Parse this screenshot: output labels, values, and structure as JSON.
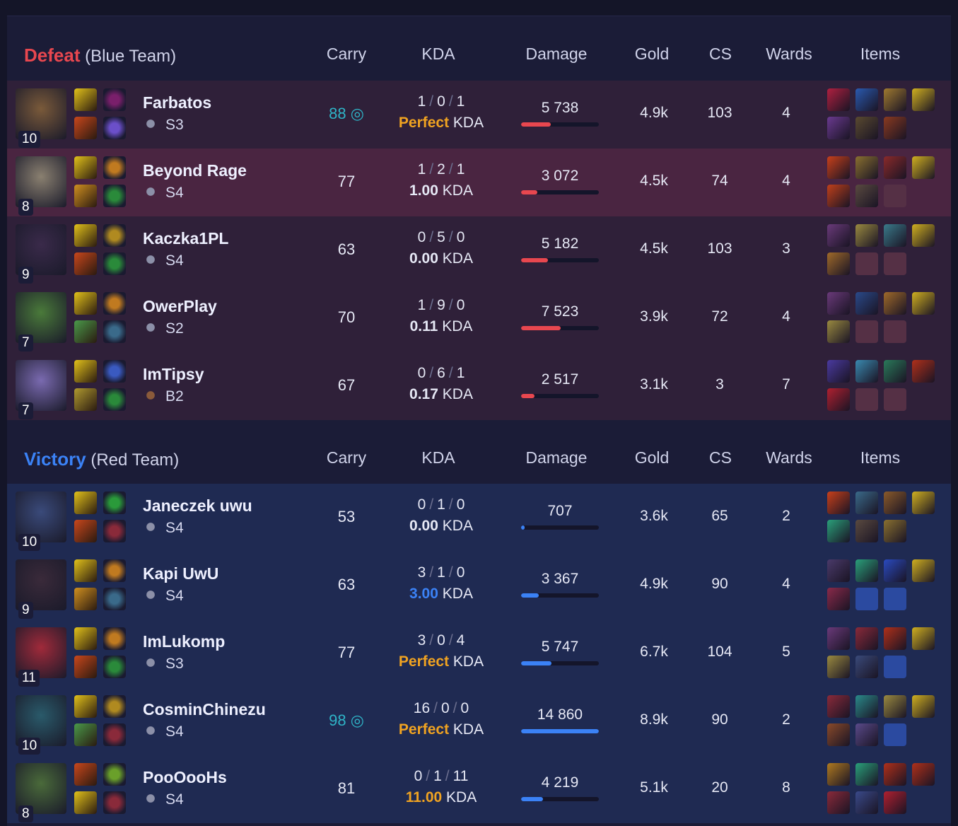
{
  "columns": {
    "carry": "Carry",
    "kda": "KDA",
    "damage": "Damage",
    "gold": "Gold",
    "cs": "CS",
    "wards": "Wards",
    "items": "Items"
  },
  "kda_suffix": "KDA",
  "max_damage": 14860,
  "colors": {
    "defeat": "#e8474f",
    "victory": "#3b82f6",
    "perfect": "#f0a321",
    "mvp": "#2fb5c8",
    "red_bar": "#e8474f",
    "blue_bar": "#3b82f6"
  },
  "teams": [
    {
      "result": "Defeat",
      "team": "(Blue Team)",
      "side": "red",
      "players": [
        {
          "name": "Farbatos",
          "level": "10",
          "rank": "S3",
          "tier_color": "#8c90a8",
          "carry": "88",
          "mvp": true,
          "k": "1",
          "d": "0",
          "a": "1",
          "ratio": "Perfect",
          "ratio_color": "#f0a321",
          "damage": 5738,
          "damage_text": "5 738",
          "gold": "4.9k",
          "cs": "103",
          "wards": "4",
          "portrait": "#7a5a3a",
          "spells": [
            "#e2c21a",
            "#c9471c"
          ],
          "runes": [
            "#7a1f6b",
            "#6b4fc9"
          ],
          "items": [
            "#b02040",
            "#2a5ab0",
            "#a07a30",
            "#d0b020",
            "#6a3a90",
            "#5a4a30",
            "#8a3a20"
          ],
          "empty": 0
        },
        {
          "name": "Beyond Rage",
          "level": "8",
          "rank": "S4",
          "tier_color": "#8c90a8",
          "carry": "77",
          "mvp": false,
          "k": "1",
          "d": "2",
          "a": "1",
          "ratio": "1.00",
          "ratio_color": "#e6e8f5",
          "damage": 3072,
          "damage_text": "3 072",
          "gold": "4.5k",
          "cs": "74",
          "wards": "4",
          "portrait": "#8a8070",
          "spells": [
            "#e2c21a",
            "#d09020"
          ],
          "runes": [
            "#c07a20",
            "#2a8a3a"
          ],
          "items": [
            "#c8401a",
            "#8a7030",
            "#8a2a2a",
            "#d0b020",
            "#c0401a",
            "#5a4a40"
          ],
          "empty": 1,
          "highlight": true
        },
        {
          "name": "Kaczka1PL",
          "level": "9",
          "rank": "S4",
          "tier_color": "#8c90a8",
          "carry": "63",
          "mvp": false,
          "k": "0",
          "d": "5",
          "a": "0",
          "ratio": "0.00",
          "ratio_color": "#e6e8f5",
          "damage": 5182,
          "damage_text": "5 182",
          "gold": "4.5k",
          "cs": "103",
          "wards": "3",
          "portrait": "#3a2a4a",
          "spells": [
            "#e2c21a",
            "#c9471c"
          ],
          "runes": [
            "#b08a20",
            "#2a8a3a"
          ],
          "items": [
            "#6a3a7a",
            "#9a8a40",
            "#3a7a8a",
            "#d0b020",
            "#a06a2a"
          ],
          "empty": 2
        },
        {
          "name": "OwerPlay",
          "level": "7",
          "rank": "S2",
          "tier_color": "#8c90a8",
          "carry": "70",
          "mvp": false,
          "k": "1",
          "d": "9",
          "a": "0",
          "ratio": "0.11",
          "ratio_color": "#e6e8f5",
          "damage": 7523,
          "damage_text": "7 523",
          "gold": "3.9k",
          "cs": "72",
          "wards": "4",
          "portrait": "#4a7a3a",
          "spells": [
            "#e2c21a",
            "#4a9a4a"
          ],
          "runes": [
            "#c07a20",
            "#3a6a8a"
          ],
          "items": [
            "#6a3a7a",
            "#2a4a8a",
            "#a06a2a",
            "#d0b020",
            "#9a8a40"
          ],
          "empty": 2
        },
        {
          "name": "ImTipsy",
          "level": "7",
          "rank": "B2",
          "tier_color": "#8a5a3a",
          "carry": "67",
          "mvp": false,
          "k": "0",
          "d": "6",
          "a": "1",
          "ratio": "0.17",
          "ratio_color": "#e6e8f5",
          "damage": 2517,
          "damage_text": "2 517",
          "gold": "3.1k",
          "cs": "3",
          "wards": "7",
          "portrait": "#7a6ab0",
          "spells": [
            "#e2c21a",
            "#b09a30"
          ],
          "runes": [
            "#3a5ac0",
            "#2a8a3a"
          ],
          "items": [
            "#4a3aa0",
            "#3a8ab0",
            "#2a7a5a",
            "#b0301a",
            "#b02030"
          ],
          "empty": 2
        }
      ]
    },
    {
      "result": "Victory",
      "team": "(Red Team)",
      "side": "blue",
      "players": [
        {
          "name": "Janeczek uwu",
          "level": "10",
          "rank": "S4",
          "tier_color": "#8c90a8",
          "carry": "53",
          "mvp": false,
          "k": "0",
          "d": "1",
          "a": "0",
          "ratio": "0.00",
          "ratio_color": "#e6e8f5",
          "damage": 707,
          "damage_text": "707",
          "gold": "3.6k",
          "cs": "65",
          "wards": "2",
          "portrait": "#3a4a7a",
          "spells": [
            "#e2c21a",
            "#c9471c"
          ],
          "runes": [
            "#2a9a3a",
            "#8a2a3a"
          ],
          "items": [
            "#c8401a",
            "#3a6a8a",
            "#8a5a2a",
            "#d0b020",
            "#2aa07a",
            "#5a4a40",
            "#8a7030"
          ],
          "empty": 0
        },
        {
          "name": "Kapi UwU",
          "level": "9",
          "rank": "S4",
          "tier_color": "#8c90a8",
          "carry": "63",
          "mvp": false,
          "k": "3",
          "d": "1",
          "a": "0",
          "ratio": "3.00",
          "ratio_color": "#3b82f6",
          "damage": 3367,
          "damage_text": "3 367",
          "gold": "4.9k",
          "cs": "90",
          "wards": "4",
          "portrait": "#3a2a3a",
          "spells": [
            "#e2c21a",
            "#d09020"
          ],
          "runes": [
            "#c07a20",
            "#3a6a8a"
          ],
          "items": [
            "#4a3a6a",
            "#2aa07a",
            "#2a4ac0",
            "#d0b020",
            "#8a2a4a"
          ],
          "empty": 2
        },
        {
          "name": "ImLukomp",
          "level": "11",
          "rank": "S3",
          "tier_color": "#8c90a8",
          "carry": "77",
          "mvp": false,
          "k": "3",
          "d": "0",
          "a": "4",
          "ratio": "Perfect",
          "ratio_color": "#f0a321",
          "damage": 5747,
          "damage_text": "5 747",
          "gold": "6.7k",
          "cs": "104",
          "wards": "5",
          "portrait": "#a02a3a",
          "spells": [
            "#e2c21a",
            "#c9471c"
          ],
          "runes": [
            "#c07a20",
            "#2a8a3a"
          ],
          "items": [
            "#6a3a7a",
            "#8a2a3a",
            "#b0301a",
            "#d0b020",
            "#9a8a40",
            "#3a4a7a"
          ],
          "empty": 1
        },
        {
          "name": "CosminChinezu",
          "level": "10",
          "rank": "S4",
          "tier_color": "#8c90a8",
          "carry": "98",
          "mvp": true,
          "k": "16",
          "d": "0",
          "a": "0",
          "ratio": "Perfect",
          "ratio_color": "#f0a321",
          "damage": 14860,
          "damage_text": "14 860",
          "gold": "8.9k",
          "cs": "90",
          "wards": "2",
          "portrait": "#2a5a6a",
          "spells": [
            "#e2c21a",
            "#4a9a4a"
          ],
          "runes": [
            "#b08a20",
            "#8a2a3a"
          ],
          "items": [
            "#8a2a3a",
            "#2a8a8a",
            "#9a8a40",
            "#d0b020",
            "#8a4a2a",
            "#5a4a8a"
          ],
          "empty": 1
        },
        {
          "name": "PooOooHs",
          "level": "8",
          "rank": "S4",
          "tier_color": "#8c90a8",
          "carry": "81",
          "mvp": false,
          "k": "0",
          "d": "1",
          "a": "11",
          "ratio": "11.00",
          "ratio_color": "#f0a321",
          "damage": 4219,
          "damage_text": "4 219",
          "gold": "5.1k",
          "cs": "20",
          "wards": "8",
          "portrait": "#4a6a3a",
          "spells": [
            "#c9471c",
            "#e2c21a"
          ],
          "runes": [
            "#6aa02a",
            "#8a2a3a"
          ],
          "items": [
            "#b07a20",
            "#2aa07a",
            "#b0301a",
            "#b0301a",
            "#8a2a3a",
            "#3a4a8a",
            "#b02030"
          ],
          "empty": 0
        }
      ]
    }
  ]
}
